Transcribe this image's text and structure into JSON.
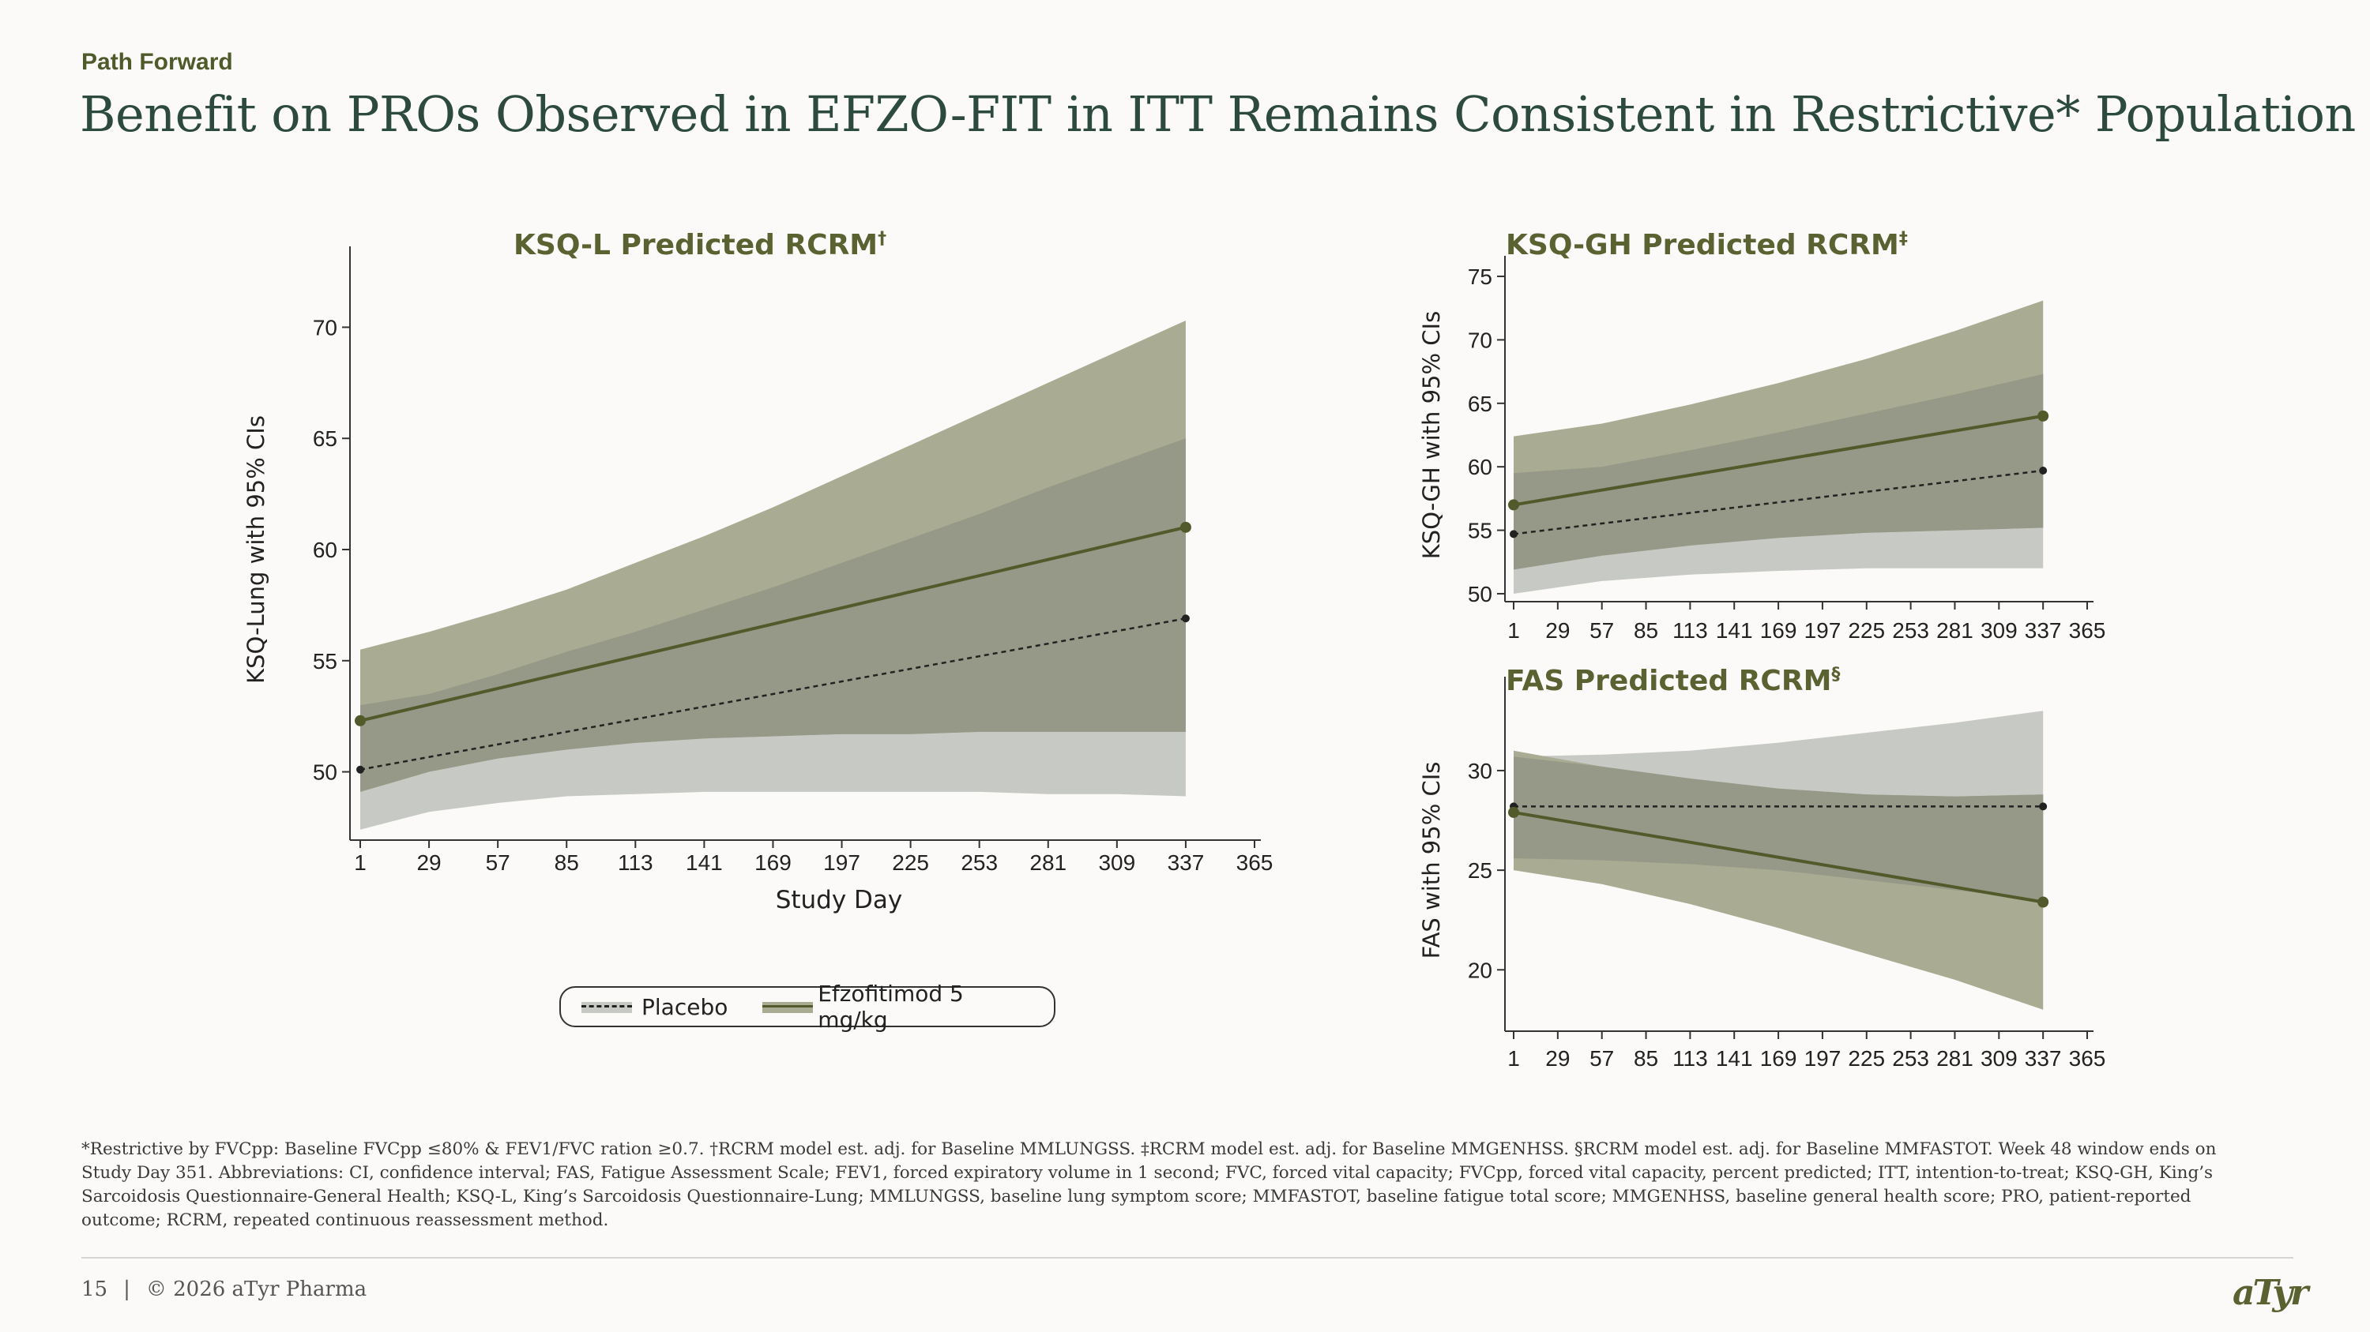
{
  "header": {
    "section": "Path Forward",
    "title": "Benefit on PROs Observed in EFZO-FIT in ITT Remains Consistent in Restrictive* Population"
  },
  "colors": {
    "placebo_band": "#c7c9c5",
    "efzo_band": "#a9ab92",
    "overlap": "#969987",
    "efzo_line": "#525a2c",
    "placebo_line": "#222222"
  },
  "legend": {
    "placebo": "Placebo",
    "efzo": "Efzofitimod 5 mg/kg"
  },
  "chart_data": [
    {
      "type": "line",
      "title": "KSQ-L Predicted RCRM",
      "title_mark": "†",
      "xlabel": "Study Day",
      "ylabel": "KSQ-Lung with 95% CIs",
      "x_ticks": [
        1,
        29,
        57,
        85,
        113,
        141,
        169,
        197,
        225,
        253,
        281,
        309,
        337,
        365
      ],
      "y_ticks": [
        50,
        55,
        60,
        65,
        70
      ],
      "xlim": [
        1,
        365
      ],
      "ylim": [
        47,
        73
      ],
      "series": [
        {
          "name": "Placebo",
          "style": "dashed",
          "x": [
            1,
            337
          ],
          "y": [
            50.1,
            56.9
          ],
          "ci_x": [
            1,
            29,
            57,
            85,
            113,
            141,
            169,
            197,
            225,
            253,
            281,
            309,
            337
          ],
          "ci_lower": [
            47.4,
            48.2,
            48.6,
            48.9,
            49.0,
            49.1,
            49.1,
            49.1,
            49.1,
            49.1,
            49.0,
            49.0,
            48.9
          ],
          "ci_upper": [
            53.0,
            53.5,
            54.4,
            55.4,
            56.3,
            57.3,
            58.3,
            59.4,
            60.5,
            61.6,
            62.8,
            63.9,
            65.0
          ]
        },
        {
          "name": "Efzofitimod 5 mg/kg",
          "style": "solid",
          "x": [
            1,
            337
          ],
          "y": [
            52.3,
            61.0
          ],
          "ci_x": [
            1,
            29,
            57,
            85,
            113,
            141,
            169,
            197,
            225,
            253,
            281,
            309,
            337
          ],
          "ci_lower": [
            49.1,
            50.0,
            50.6,
            51.0,
            51.3,
            51.5,
            51.6,
            51.7,
            51.7,
            51.8,
            51.8,
            51.8,
            51.8
          ],
          "ci_upper": [
            55.5,
            56.3,
            57.2,
            58.2,
            59.4,
            60.6,
            61.9,
            63.3,
            64.7,
            66.1,
            67.5,
            68.9,
            70.3
          ]
        }
      ]
    },
    {
      "type": "line",
      "title": "KSQ-GH Predicted RCRM",
      "title_mark": "‡",
      "xlabel": "",
      "ylabel": "KSQ-GH with 95% CIs",
      "x_ticks": [
        1,
        29,
        57,
        85,
        113,
        141,
        169,
        197,
        225,
        253,
        281,
        309,
        337,
        365
      ],
      "y_ticks": [
        50,
        55,
        60,
        65,
        70,
        75
      ],
      "xlim": [
        1,
        365
      ],
      "ylim": [
        49.5,
        75.5
      ],
      "series": [
        {
          "name": "Placebo",
          "style": "dashed",
          "x": [
            1,
            337
          ],
          "y": [
            54.7,
            59.7
          ],
          "ci_x": [
            1,
            57,
            113,
            169,
            225,
            281,
            337
          ],
          "ci_lower": [
            50.0,
            51.0,
            51.5,
            51.8,
            52.0,
            52.0,
            52.0
          ],
          "ci_upper": [
            59.5,
            60.0,
            61.3,
            62.7,
            64.2,
            65.7,
            67.3
          ]
        },
        {
          "name": "Efzofitimod 5 mg/kg",
          "style": "solid",
          "x": [
            1,
            337
          ],
          "y": [
            57.0,
            64.0
          ],
          "ci_x": [
            1,
            57,
            113,
            169,
            225,
            281,
            337
          ],
          "ci_lower": [
            51.9,
            53.0,
            53.8,
            54.4,
            54.8,
            55.0,
            55.2
          ],
          "ci_upper": [
            62.4,
            63.4,
            64.9,
            66.6,
            68.5,
            70.7,
            73.1
          ]
        }
      ]
    },
    {
      "type": "line",
      "title": "FAS Predicted RCRM",
      "title_mark": "§",
      "xlabel": "",
      "ylabel": "FAS with 95% CIs",
      "x_ticks": [
        1,
        29,
        57,
        85,
        113,
        141,
        169,
        197,
        225,
        253,
        281,
        309,
        337,
        365
      ],
      "y_ticks": [
        20,
        25,
        30
      ],
      "xlim": [
        1,
        365
      ],
      "ylim": [
        17,
        34
      ],
      "series": [
        {
          "name": "Placebo",
          "style": "dashed",
          "x": [
            1,
            337
          ],
          "y": [
            28.2,
            28.2
          ],
          "ci_x": [
            1,
            57,
            113,
            169,
            225,
            281,
            337
          ],
          "ci_lower": [
            25.6,
            25.5,
            25.3,
            25.0,
            24.5,
            24.0,
            23.5
          ],
          "ci_upper": [
            30.7,
            30.8,
            31.0,
            31.4,
            31.9,
            32.4,
            33.0
          ]
        },
        {
          "name": "Efzofitimod 5 mg/kg",
          "style": "solid",
          "x": [
            1,
            337
          ],
          "y": [
            27.9,
            23.4
          ],
          "ci_x": [
            1,
            57,
            113,
            169,
            225,
            281,
            337
          ],
          "ci_lower": [
            25.0,
            24.3,
            23.3,
            22.1,
            20.8,
            19.5,
            18.0
          ],
          "ci_upper": [
            31.0,
            30.2,
            29.6,
            29.1,
            28.8,
            28.7,
            28.8
          ]
        }
      ]
    }
  ],
  "footnote": "*Restrictive by FVCpp: Baseline FVCpp ≤80% & FEV1/FVC ration ≥0.7. †RCRM model est. adj. for Baseline MMLUNGSS. ‡RCRM model est. adj. for Baseline MMGENHSS. §RCRM model est. adj. for Baseline MMFASTOT. Week 48 window ends on Study Day 351. Abbreviations: CI, confidence interval; FAS, Fatigue Assessment Scale; FEV1, forced expiratory volume in 1 second; FVC, forced vital capacity; FVCpp, forced vital capacity, percent predicted; ITT, intention-to-treat; KSQ-GH, King’s Sarcoidosis Questionnaire-General Health; KSQ-L, King’s Sarcoidosis Questionnaire-Lung; MMLUNGSS, baseline lung symptom score; MMFASTOT, baseline fatigue total score; MMGENHSS, baseline general health score; PRO, patient-reported outcome; RCRM, repeated continuous reassessment method.",
  "footer": {
    "page": "15",
    "separator": "|",
    "copyright": "© 2026 aTyr Pharma",
    "logo": "aTyr"
  }
}
